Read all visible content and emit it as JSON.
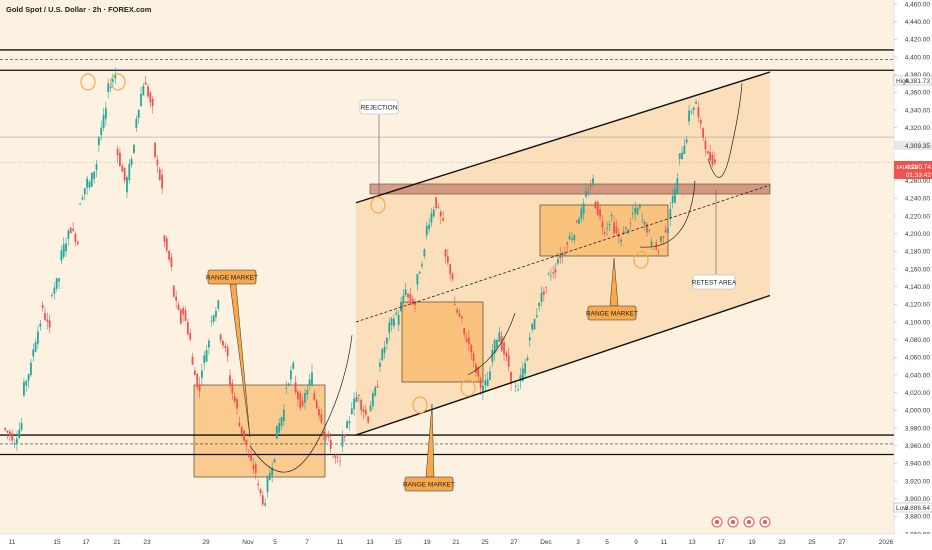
{
  "chart_data": {
    "type": "candlestick",
    "title": "Gold Spot / U.S. Dollar · 2h · FOREX.com",
    "ylim": [
      3860,
      4460
    ],
    "y_ticks": [
      3860,
      3880,
      3900,
      3920,
      3940,
      3960,
      3980,
      4000,
      4020,
      4040,
      4060,
      4080,
      4100,
      4120,
      4140,
      4160,
      4180,
      4200,
      4220,
      4240,
      4260,
      4280,
      4300,
      4320,
      4340,
      4360,
      4380,
      4400,
      4420,
      4440,
      4460
    ],
    "x_ticks": [
      "11",
      "15",
      "17",
      "21",
      "23",
      "29",
      "Nov",
      "5",
      "7",
      "11",
      "13",
      "15",
      "19",
      "21",
      "25",
      "27",
      "Dec",
      "3",
      "5",
      "9",
      "11",
      "13",
      "17",
      "19",
      "23",
      "25",
      "27",
      "2026"
    ],
    "price_labels": {
      "high": {
        "label": "High",
        "value": "4,381.73",
        "price": 4381.73
      },
      "last": {
        "label": "XAUUSD",
        "value": "4,280.74",
        "countdown": "01:33:42",
        "price": 4280.74
      },
      "mark": {
        "value": "4,309.35",
        "price": 4309.35
      },
      "low": {
        "label": "Low",
        "value": "3,886.64",
        "price": 3886.64
      }
    },
    "price_path": [
      [
        3980,
        3970
      ],
      [
        3960,
        3985
      ],
      [
        4020,
        4050
      ],
      [
        4060,
        4100
      ],
      [
        4120,
        4090
      ],
      [
        4130,
        4150
      ],
      [
        4170,
        4200
      ],
      [
        4210,
        4190
      ],
      [
        4230,
        4260
      ],
      [
        4250,
        4280
      ],
      [
        4300,
        4340
      ],
      [
        4360,
        4381
      ],
      [
        4300,
        4260
      ],
      [
        4250,
        4300
      ],
      [
        4320,
        4370
      ],
      [
        4375,
        4340
      ],
      [
        4300,
        4250
      ],
      [
        4200,
        4160
      ],
      [
        4140,
        4100
      ],
      [
        4120,
        4080
      ],
      [
        4060,
        4020
      ],
      [
        4040,
        4080
      ],
      [
        4100,
        4120
      ],
      [
        4090,
        4060
      ],
      [
        4040,
        4000
      ],
      [
        3990,
        3960
      ],
      [
        3950,
        3930
      ],
      [
        3920,
        3890
      ],
      [
        3910,
        3950
      ],
      [
        3970,
        4000
      ],
      [
        4020,
        4050
      ],
      [
        4030,
        4000
      ],
      [
        4010,
        4040
      ],
      [
        4020,
        3990
      ],
      [
        3980,
        3960
      ],
      [
        3950,
        3940
      ],
      [
        3960,
        3990
      ],
      [
        4000,
        4020
      ],
      [
        4010,
        3990
      ],
      [
        4000,
        4030
      ],
      [
        4050,
        4080
      ],
      [
        4090,
        4110
      ],
      [
        4100,
        4140
      ],
      [
        4130,
        4120
      ],
      [
        4140,
        4180
      ],
      [
        4200,
        4230
      ],
      [
        4240,
        4210
      ],
      [
        4180,
        4150
      ],
      [
        4120,
        4100
      ],
      [
        4090,
        4070
      ],
      [
        4060,
        4030
      ],
      [
        4020,
        4040
      ],
      [
        4060,
        4090
      ],
      [
        4080,
        4050
      ],
      [
        4040,
        4020
      ],
      [
        4030,
        4060
      ],
      [
        4080,
        4110
      ],
      [
        4120,
        4140
      ],
      [
        4150,
        4160
      ],
      [
        4170,
        4180
      ],
      [
        4190,
        4200
      ],
      [
        4210,
        4230
      ],
      [
        4240,
        4260
      ],
      [
        4240,
        4210
      ],
      [
        4200,
        4220
      ],
      [
        4210,
        4190
      ],
      [
        4200,
        4210
      ],
      [
        4220,
        4230
      ],
      [
        4220,
        4200
      ],
      [
        4190,
        4180
      ],
      [
        4190,
        4210
      ],
      [
        4220,
        4260
      ],
      [
        4280,
        4310
      ],
      [
        4330,
        4350
      ],
      [
        4340,
        4300
      ],
      [
        4290,
        4280
      ]
    ],
    "levels": [
      {
        "name": "resistance-upper",
        "price": 4408
      },
      {
        "name": "resistance-lower",
        "price": 4385
      },
      {
        "name": "support-upper",
        "price": 3972
      },
      {
        "name": "support-lower",
        "price": 3950
      }
    ],
    "channel": {
      "upper": [
        [
          13,
          4235
        ],
        [
          19,
          4383
        ]
      ],
      "lower": [
        [
          13,
          3972
        ],
        [
          19,
          4130
        ]
      ],
      "mid": [
        [
          13,
          4100
        ],
        [
          19,
          4255
        ]
      ]
    },
    "zones": [
      {
        "name": "retest-zone",
        "from_day": 13,
        "to_day": 19,
        "y": [
          4252,
          4265
        ]
      },
      {
        "name": "range-nov",
        "from_day": "Oct 27",
        "to_day": "Nov 11",
        "y": [
          3945,
          4035
        ]
      },
      {
        "name": "range-mid-nov",
        "from_day": 15,
        "to_day": 23,
        "y": [
          4030,
          4120
        ]
      },
      {
        "name": "range-early-dec",
        "from_day": "Dec 2",
        "to_day": "Dec 12",
        "y": [
          4195,
          4245
        ]
      }
    ],
    "annotations": [
      {
        "name": "rejection",
        "text": "REJECTION"
      },
      {
        "name": "range-market-1",
        "text": "RANGE MARKET"
      },
      {
        "name": "range-market-2",
        "text": "RANGE MARKET"
      },
      {
        "name": "range-market-3",
        "text": "RANGE MARKET"
      },
      {
        "name": "retest-area",
        "text": "RETEST AREA"
      }
    ],
    "colors": {
      "up": "#26a69a",
      "down": "#ef5350",
      "zone": "#f7a94b",
      "zone_border": "#6b4a2a",
      "retest": "#c07a6a",
      "background": "#fdf2e1"
    }
  }
}
